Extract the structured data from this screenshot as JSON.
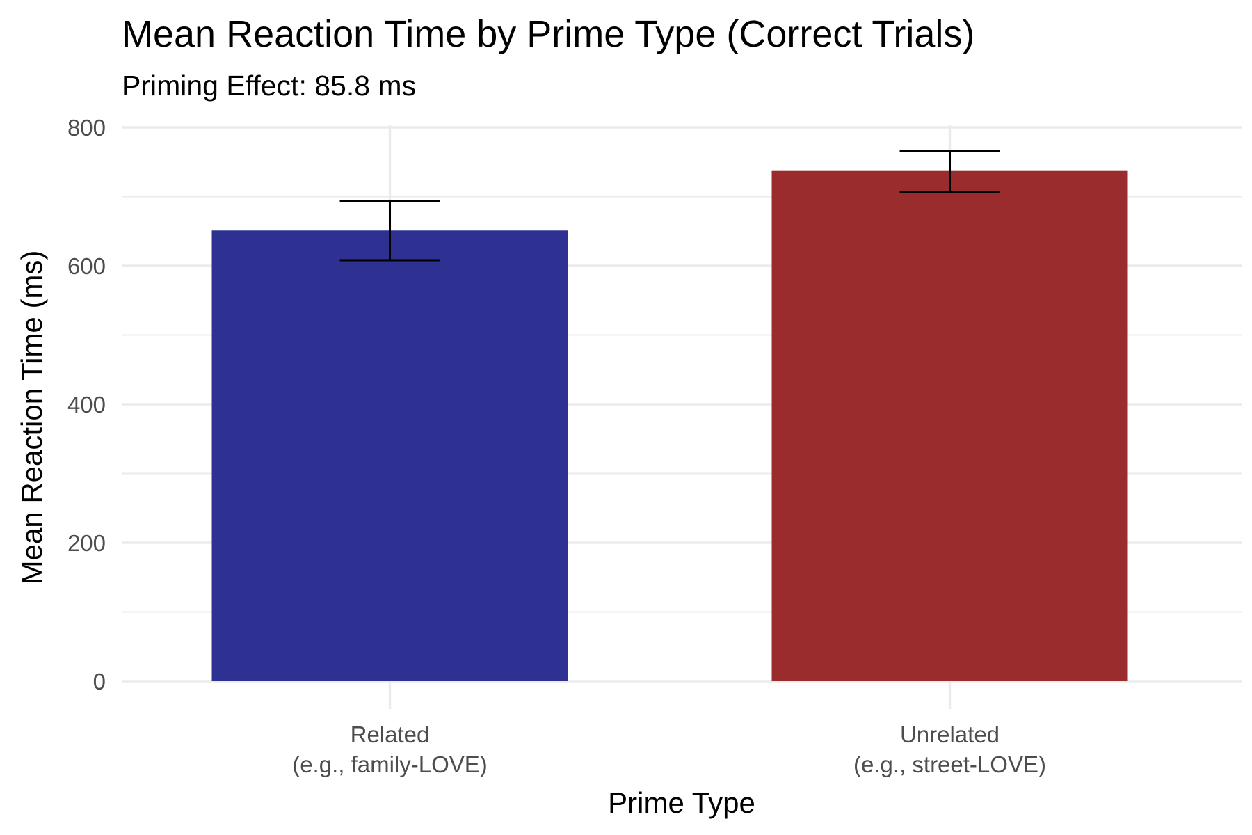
{
  "chart_data": {
    "type": "bar",
    "title": "Mean Reaction Time by Prime Type (Correct Trials)",
    "subtitle": "Priming Effect: 85.8 ms",
    "xlabel": "Prime Type",
    "ylabel": "Mean Reaction Time (ms)",
    "ylim": [
      0,
      800
    ],
    "yticks": [
      0,
      200,
      400,
      600,
      800
    ],
    "y_tick_labels": [
      "0",
      "200",
      "400",
      "600",
      "800"
    ],
    "grid": true,
    "legend": "none",
    "categories": [
      {
        "line1": "Related",
        "line2": "(e.g., family-LOVE)"
      },
      {
        "line1": "Unrelated",
        "line2": "(e.g., street-LOVE)"
      }
    ],
    "values": [
      651,
      737
    ],
    "error_low": [
      608,
      707
    ],
    "error_high": [
      693,
      766
    ],
    "colors": [
      "#2e3192",
      "#9b2c2e"
    ]
  }
}
